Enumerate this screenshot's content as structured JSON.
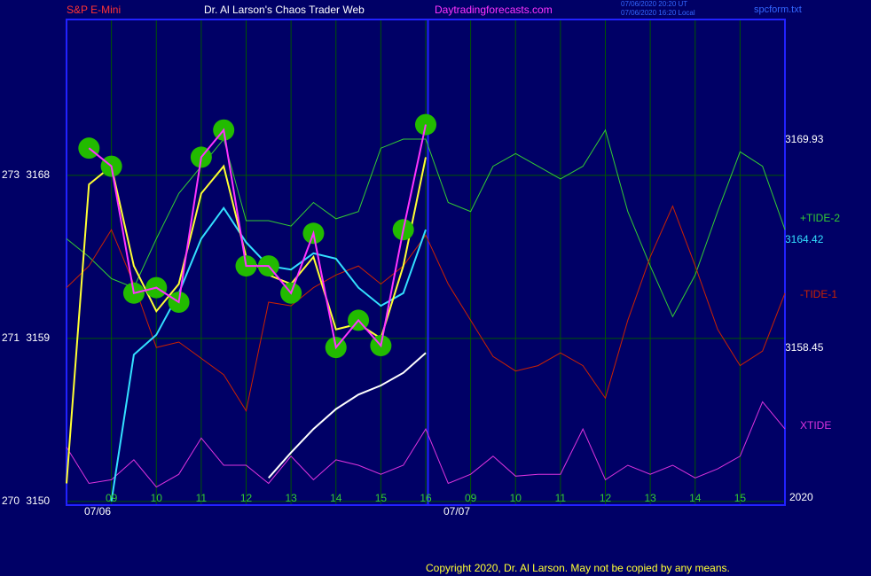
{
  "chart_data": {
    "type": "line",
    "title": "Dr. Al Larson's Chaos Trader Web",
    "header_left": "S&P E-Mini",
    "header_site": "Daytradingforecasts.com",
    "header_time_ut": "07/06/2020 20:20 UT",
    "header_time_local": "07/06/2020 16:20 Local",
    "header_file": "spcform.txt",
    "dates": [
      "07/06",
      "07/07"
    ],
    "year": "2020",
    "copyright": "Copyright 2020, Dr. Al Larson. May not be copied by any means.",
    "annotations": [
      "3169.93",
      "3164.42",
      "3158.45"
    ],
    "xlim": [
      0,
      16
    ],
    "ylim": [
      3149.8,
      3176.6
    ],
    "xticks": [
      {
        "value": 1,
        "label": "09"
      },
      {
        "value": 2,
        "label": "10"
      },
      {
        "value": 3,
        "label": "11"
      },
      {
        "value": 4,
        "label": "12"
      },
      {
        "value": 5,
        "label": "13"
      },
      {
        "value": 6,
        "label": "14"
      },
      {
        "value": 7,
        "label": "15"
      },
      {
        "value": 8,
        "label": "16"
      },
      {
        "value": 9,
        "label": "09"
      },
      {
        "value": 10,
        "label": "10"
      },
      {
        "value": 11,
        "label": "11"
      },
      {
        "value": 12,
        "label": "12"
      },
      {
        "value": 13,
        "label": "13"
      },
      {
        "value": 14,
        "label": "14"
      },
      {
        "value": 15,
        "label": "15"
      }
    ],
    "yticks": [
      {
        "value": 3168,
        "label": "273 3168"
      },
      {
        "value": 3159,
        "label": "271 3159"
      },
      {
        "value": 3150,
        "label": "270 3150"
      }
    ],
    "grid": true,
    "x": [
      0,
      0.5,
      1,
      1.5,
      2,
      2.5,
      3,
      3.5,
      4,
      4.5,
      5,
      5.5,
      6,
      6.5,
      7,
      7.5,
      8,
      8.5,
      9,
      9.5,
      10,
      10.5,
      11,
      11.5,
      12,
      12.5,
      13,
      13.5,
      14,
      14.5,
      15,
      15.5,
      16
    ],
    "series": [
      {
        "name": "+TIDE-2",
        "color": "#33cc33",
        "values": [
          3164.5,
          3163.5,
          3162.3,
          3161.8,
          3164.5,
          3167,
          3168.5,
          3170,
          3165.5,
          3165.5,
          3165.2,
          3166.5,
          3165.6,
          3166,
          3169.5,
          3170,
          3170,
          3166.5,
          3166,
          3168.5,
          3169.2,
          3168.5,
          3167.8,
          3168.5,
          3170.5,
          3166,
          3163,
          3160.2,
          3162.5,
          3166,
          3169.3,
          3168.5,
          3165
        ]
      },
      {
        "name": "-TIDE-1",
        "color": "#cc2200",
        "values": [
          3161.8,
          3163,
          3165,
          3162,
          3158.5,
          3158.8,
          3157.9,
          3157,
          3155,
          3161,
          3160.8,
          3161.8,
          3162.5,
          3163,
          3162,
          3163,
          3164.7,
          3162,
          3160,
          3158,
          3157.2,
          3157.5,
          3158.2,
          3157.5,
          3155.7,
          3160,
          3163.5,
          3166.3,
          3163,
          3159.5,
          3157.5,
          3158.3,
          3161.5
        ]
      },
      {
        "name": "XTIDE",
        "color": "#dd33dd",
        "values": [
          3153,
          3151,
          3151.2,
          3152.3,
          3150.8,
          3151.5,
          3153.5,
          3152,
          3152,
          3151,
          3152.5,
          3151.2,
          3152.3,
          3152,
          3151.5,
          3152,
          3154,
          3151,
          3151.5,
          3152.5,
          3151.4,
          3151.5,
          3151.5,
          3154,
          3151.2,
          3152,
          3151.5,
          3152,
          3151.3,
          3151.8,
          3152.5,
          3155.5,
          3154
        ]
      },
      {
        "color": "#ffffff",
        "values": [
          null,
          null,
          null,
          null,
          null,
          null,
          null,
          null,
          null,
          3151.3,
          3152.7,
          3154,
          3155.1,
          3155.9,
          3156.4,
          3157.1,
          3158.2,
          null,
          null,
          null,
          null,
          null,
          null,
          null,
          null,
          null,
          null,
          null,
          null,
          null,
          null,
          null,
          null
        ]
      },
      {
        "color": "#33e0ff",
        "values": [
          null,
          null,
          3150,
          3158.1,
          3159.2,
          3161.5,
          3164.5,
          3166.2,
          3164.3,
          3163,
          3162.8,
          3163.7,
          3163.4,
          3161.8,
          3160.8,
          3161.5,
          3165,
          null,
          null,
          null,
          null,
          null,
          null,
          null,
          null,
          null,
          null,
          null,
          null,
          null,
          null,
          null,
          null
        ]
      },
      {
        "color": "#ffff33",
        "values": [
          3151,
          3167.5,
          3168.5,
          3163,
          3160.5,
          3162,
          3167,
          3168.5,
          3163.5,
          3162.5,
          3162,
          3163.5,
          3159.5,
          3159.8,
          3159,
          3163,
          3169,
          null,
          null,
          null,
          null,
          null,
          null,
          null,
          null,
          null,
          null,
          null,
          null,
          null,
          null,
          null,
          null
        ]
      },
      {
        "color": "#ff33ff",
        "values": [
          null,
          3169.5,
          3168.5,
          3161.5,
          3161.8,
          3161,
          3169,
          3170.5,
          3163,
          3163,
          3161.5,
          3164.8,
          3158.5,
          3160,
          3158.6,
          3165,
          3170.8,
          null,
          null,
          null,
          null,
          null,
          null,
          null,
          null,
          null,
          null,
          null,
          null,
          null,
          null,
          null,
          null
        ]
      }
    ]
  }
}
